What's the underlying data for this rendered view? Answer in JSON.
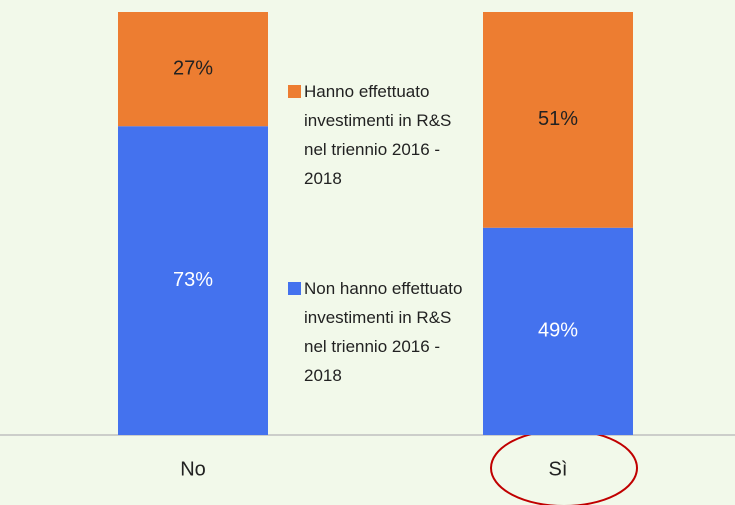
{
  "chart_data": {
    "type": "stacked_bar",
    "categories": [
      "No",
      "Sì"
    ],
    "series": [
      {
        "name": "Non hanno effettuato investimenti in R&S nel triennio 2016 - 2018",
        "color": "#4472ee",
        "values": [
          73,
          49
        ],
        "value_labels": [
          "73%",
          "49%"
        ]
      },
      {
        "name": "Hanno effettuato investimenti in R&S nel triennio 2016 - 2018",
        "color": "#ed7d31",
        "values": [
          27,
          51
        ],
        "value_labels": [
          "27%",
          "51%"
        ]
      }
    ],
    "ylim": [
      0,
      100
    ]
  }
}
